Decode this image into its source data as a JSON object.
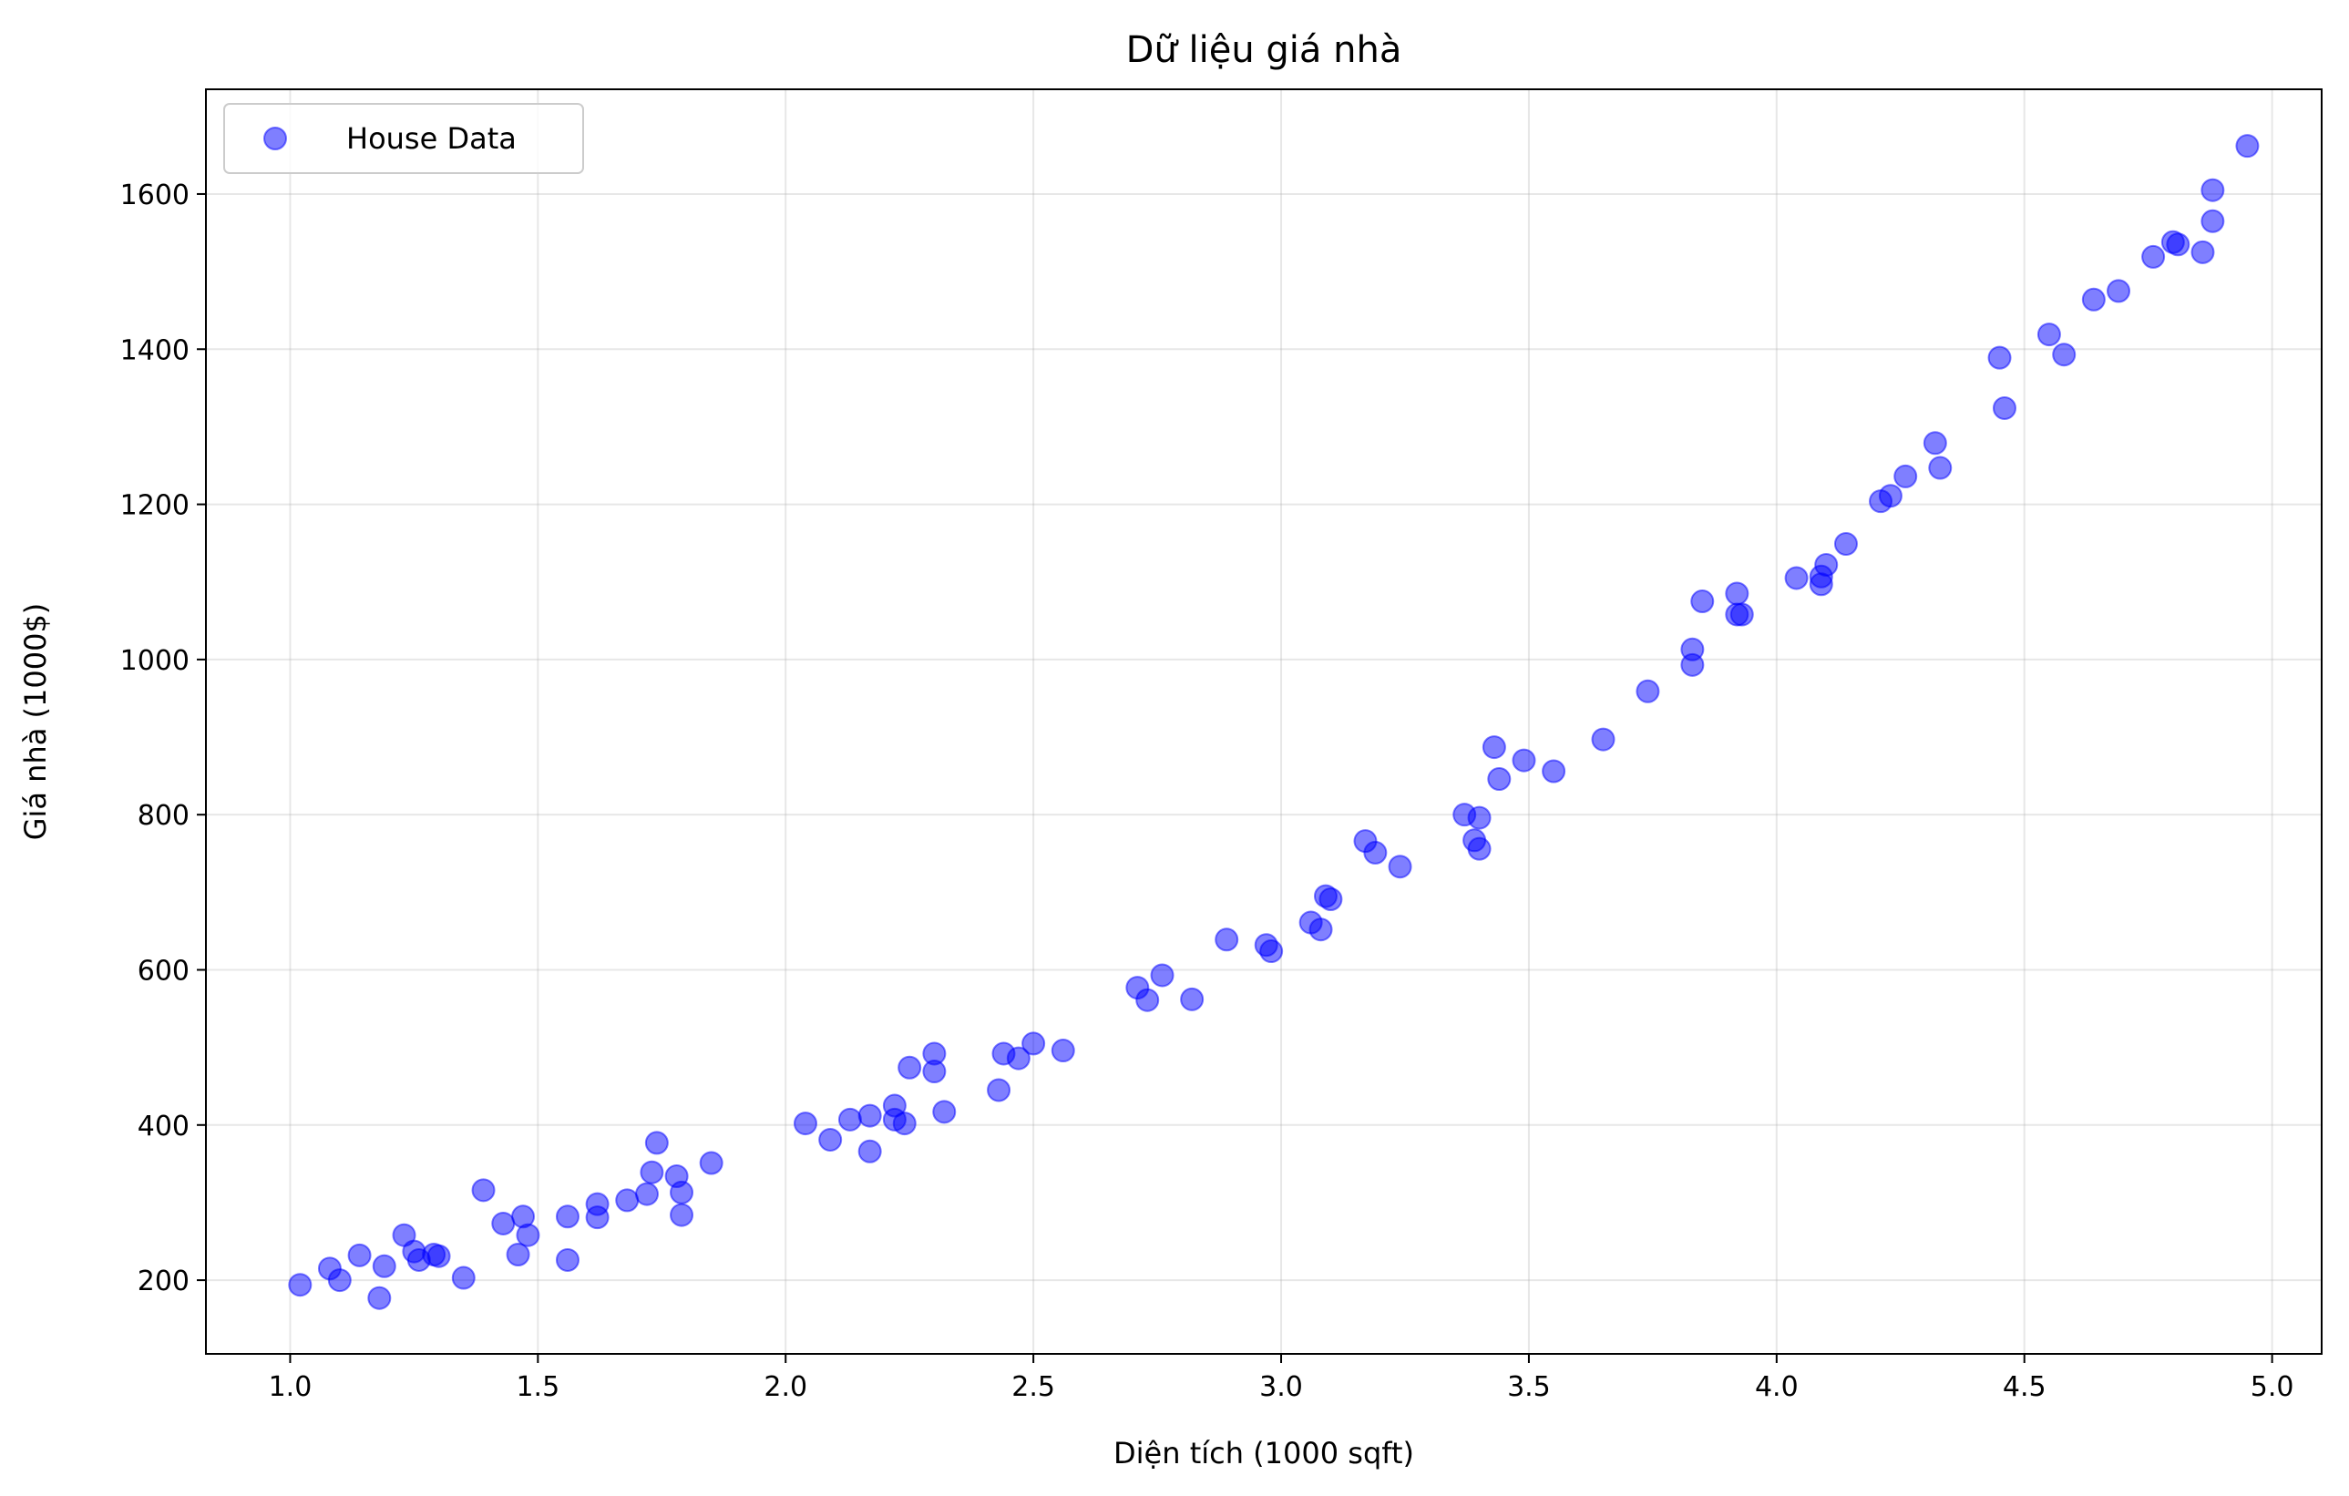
{
  "chart_data": {
    "type": "scatter",
    "title": "Dữ liệu giá nhà",
    "xlabel": "Diện tích (1000 sqft)",
    "ylabel": "Giá nhà (1000$)",
    "xlim": [
      0.83,
      5.1
    ],
    "ylim": [
      105,
      1735
    ],
    "xticks": [
      1.0,
      1.5,
      2.0,
      2.5,
      3.0,
      3.5,
      4.0,
      4.5,
      5.0
    ],
    "xtick_labels": [
      "1.0",
      "1.5",
      "2.0",
      "2.5",
      "3.0",
      "3.5",
      "4.0",
      "4.5",
      "5.0"
    ],
    "yticks": [
      200,
      400,
      600,
      800,
      1000,
      1200,
      1400,
      1600
    ],
    "ytick_labels": [
      "200",
      "400",
      "600",
      "800",
      "1000",
      "1200",
      "1400",
      "1600"
    ],
    "grid": true,
    "legend_position": "top-left",
    "marker_color": "#0000ff",
    "marker_alpha": 0.5,
    "series": [
      {
        "name": "House Data",
        "points": [
          [
            1.02,
            194
          ],
          [
            1.08,
            215
          ],
          [
            1.1,
            200
          ],
          [
            1.14,
            232
          ],
          [
            1.18,
            177
          ],
          [
            1.19,
            218
          ],
          [
            1.23,
            258
          ],
          [
            1.25,
            237
          ],
          [
            1.26,
            226
          ],
          [
            1.29,
            233
          ],
          [
            1.3,
            231
          ],
          [
            1.35,
            203
          ],
          [
            1.39,
            316
          ],
          [
            1.43,
            273
          ],
          [
            1.46,
            233
          ],
          [
            1.47,
            282
          ],
          [
            1.48,
            258
          ],
          [
            1.56,
            282
          ],
          [
            1.56,
            226
          ],
          [
            1.62,
            298
          ],
          [
            1.62,
            281
          ],
          [
            1.68,
            303
          ],
          [
            1.72,
            311
          ],
          [
            1.73,
            339
          ],
          [
            1.74,
            377
          ],
          [
            1.78,
            334
          ],
          [
            1.79,
            313
          ],
          [
            1.79,
            284
          ],
          [
            1.85,
            351
          ],
          [
            2.04,
            402
          ],
          [
            2.09,
            381
          ],
          [
            2.13,
            407
          ],
          [
            2.17,
            366
          ],
          [
            2.17,
            412
          ],
          [
            2.22,
            425
          ],
          [
            2.22,
            407
          ],
          [
            2.24,
            402
          ],
          [
            2.25,
            474
          ],
          [
            2.3,
            492
          ],
          [
            2.3,
            469
          ],
          [
            2.32,
            417
          ],
          [
            2.43,
            445
          ],
          [
            2.44,
            492
          ],
          [
            2.47,
            486
          ],
          [
            2.5,
            505
          ],
          [
            2.56,
            496
          ],
          [
            2.71,
            577
          ],
          [
            2.73,
            561
          ],
          [
            2.76,
            593
          ],
          [
            2.82,
            562
          ],
          [
            2.89,
            639
          ],
          [
            2.97,
            632
          ],
          [
            2.98,
            624
          ],
          [
            3.06,
            661
          ],
          [
            3.08,
            652
          ],
          [
            3.09,
            695
          ],
          [
            3.1,
            691
          ],
          [
            3.17,
            766
          ],
          [
            3.19,
            751
          ],
          [
            3.24,
            733
          ],
          [
            3.37,
            800
          ],
          [
            3.39,
            767
          ],
          [
            3.4,
            756
          ],
          [
            3.4,
            796
          ],
          [
            3.43,
            887
          ],
          [
            3.44,
            846
          ],
          [
            3.49,
            870
          ],
          [
            3.55,
            856
          ],
          [
            3.65,
            897
          ],
          [
            3.74,
            959
          ],
          [
            3.83,
            1013
          ],
          [
            3.83,
            993
          ],
          [
            3.85,
            1075
          ],
          [
            3.92,
            1085
          ],
          [
            3.92,
            1058
          ],
          [
            3.93,
            1058
          ],
          [
            4.04,
            1105
          ],
          [
            4.09,
            1107
          ],
          [
            4.09,
            1097
          ],
          [
            4.1,
            1122
          ],
          [
            4.14,
            1149
          ],
          [
            4.21,
            1204
          ],
          [
            4.23,
            1211
          ],
          [
            4.26,
            1236
          ],
          [
            4.32,
            1279
          ],
          [
            4.33,
            1247
          ],
          [
            4.45,
            1389
          ],
          [
            4.46,
            1324
          ],
          [
            4.55,
            1419
          ],
          [
            4.58,
            1393
          ],
          [
            4.64,
            1464
          ],
          [
            4.69,
            1475
          ],
          [
            4.76,
            1519
          ],
          [
            4.8,
            1538
          ],
          [
            4.81,
            1535
          ],
          [
            4.86,
            1525
          ],
          [
            4.88,
            1565
          ],
          [
            4.88,
            1605
          ],
          [
            4.95,
            1662
          ]
        ]
      }
    ]
  }
}
